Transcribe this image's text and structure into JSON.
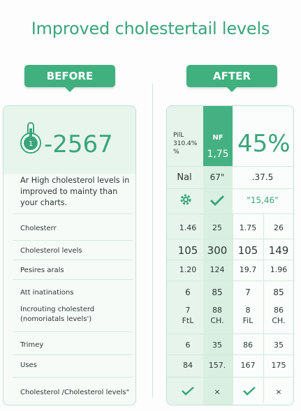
{
  "title": "Improved cholestertail levels",
  "before_label": "BEFORE",
  "after_label": "AFTER",
  "before": {
    "big_value": "-2567",
    "thermo_digit": "1",
    "description": "Ar High cholesterol levels in improved to mainty than your charts.",
    "rows": [
      {
        "label": "Cholesterr"
      },
      {
        "label": "Cholesterol levels"
      },
      {
        "label": "Pesires arals"
      },
      {
        "label": "Att inatinations"
      },
      {
        "label": "Incrouting cholesterd (nomoriatals levels')"
      },
      {
        "label": "Trimey"
      },
      {
        "label": "Uses"
      },
      {
        "label": "Cholesterol /Cholesterol levels\""
      }
    ]
  },
  "after": {
    "pill_text": "PilL 310.4% %",
    "nf_label": "NF",
    "nf_value": "1,75",
    "percent": "45%",
    "row2": {
      "c1": "Nal",
      "c2": "67\"",
      "c3": ".37.5"
    },
    "row3_text": "\"15,46\"",
    "rows": [
      [
        "1.46",
        "25",
        "1.75",
        "26"
      ],
      [
        "105",
        "300",
        "105",
        "149"
      ],
      [
        "1.20",
        "124",
        "19.7",
        "1.96"
      ],
      [
        "6",
        "85",
        "7",
        "85"
      ],
      [
        "7\nFtL",
        "88\nCH.",
        "8\nFiL",
        "86\nCH."
      ],
      [
        "6",
        "35",
        "86",
        "35"
      ],
      [
        "84",
        "157.",
        "167",
        "175"
      ]
    ],
    "last_row": [
      "check",
      "×",
      "check",
      "×"
    ]
  },
  "colors": {
    "accent": "#41b07f",
    "text_green": "#3aa57a"
  }
}
